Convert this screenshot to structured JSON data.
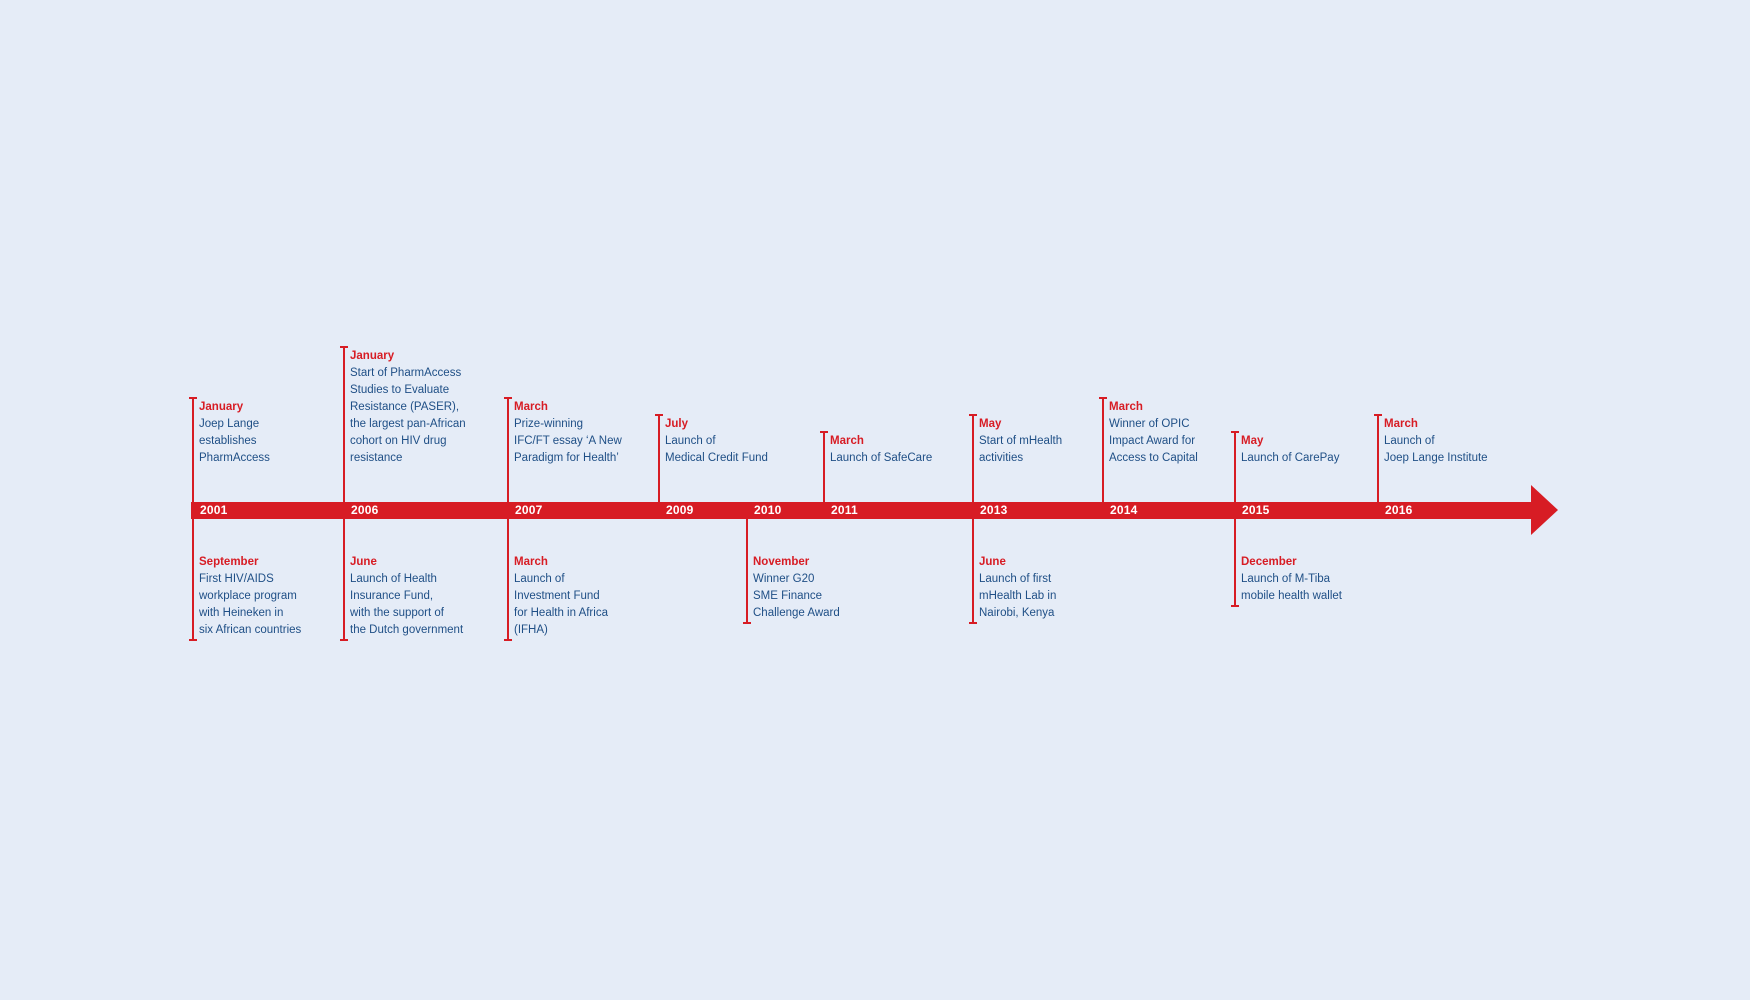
{
  "colors": {
    "accent": "#d71c24",
    "text": "#1f4f86",
    "background": "#e5ecf7"
  },
  "timeline": {
    "years": [
      "2001",
      "2006",
      "2007",
      "2009",
      "2010",
      "2011",
      "2013",
      "2014",
      "2015",
      "2016"
    ],
    "events_above": [
      {
        "year": "2001",
        "month": "January",
        "lines": [
          "Joep Lange",
          "establishes",
          "PharmAccess"
        ]
      },
      {
        "year": "2006",
        "month": "January",
        "lines": [
          "Start of PharmAccess",
          "Studies to Evaluate",
          "Resistance (PASER),",
          "the largest pan-African",
          "cohort on HIV drug",
          "resistance"
        ]
      },
      {
        "year": "2007",
        "month": "March",
        "lines": [
          "Prize-winning",
          "IFC/FT essay ‘A New",
          "Paradigm for Health’"
        ]
      },
      {
        "year": "2009",
        "month": "July",
        "lines": [
          "Launch of",
          "Medical Credit Fund"
        ]
      },
      {
        "year": "2011",
        "month": "March",
        "lines": [
          "Launch of SafeCare"
        ]
      },
      {
        "year": "2013",
        "month": "May",
        "lines": [
          "Start of mHealth",
          "activities"
        ]
      },
      {
        "year": "2014",
        "month": "March",
        "lines": [
          "Winner of OPIC",
          "Impact Award for",
          "Access to Capital"
        ]
      },
      {
        "year": "2015",
        "month": "May",
        "lines": [
          "Launch of CarePay"
        ]
      },
      {
        "year": "2016",
        "month": "March",
        "lines": [
          "Launch of",
          "Joep Lange Institute"
        ]
      }
    ],
    "events_below": [
      {
        "year": "2001",
        "month": "September",
        "lines": [
          "First HIV/AIDS",
          "workplace program",
          "with Heineken in",
          "six African countries"
        ]
      },
      {
        "year": "2006",
        "month": "June",
        "lines": [
          "Launch of Health",
          "Insurance Fund,",
          "with the support of",
          "the Dutch government"
        ]
      },
      {
        "year": "2007",
        "month": "March",
        "lines": [
          "Launch of",
          "Investment Fund",
          "for Health in Africa",
          "(IFHA)"
        ]
      },
      {
        "year": "2010",
        "month": "November",
        "lines": [
          "Winner G20",
          "SME Finance",
          "Challenge Award"
        ]
      },
      {
        "year": "2013",
        "month": "June",
        "lines": [
          "Launch of first",
          "mHealth Lab in",
          "Nairobi, Kenya"
        ]
      },
      {
        "year": "2015",
        "month": "December",
        "lines": [
          "Launch of M-Tiba",
          "mobile health wallet"
        ]
      }
    ]
  }
}
